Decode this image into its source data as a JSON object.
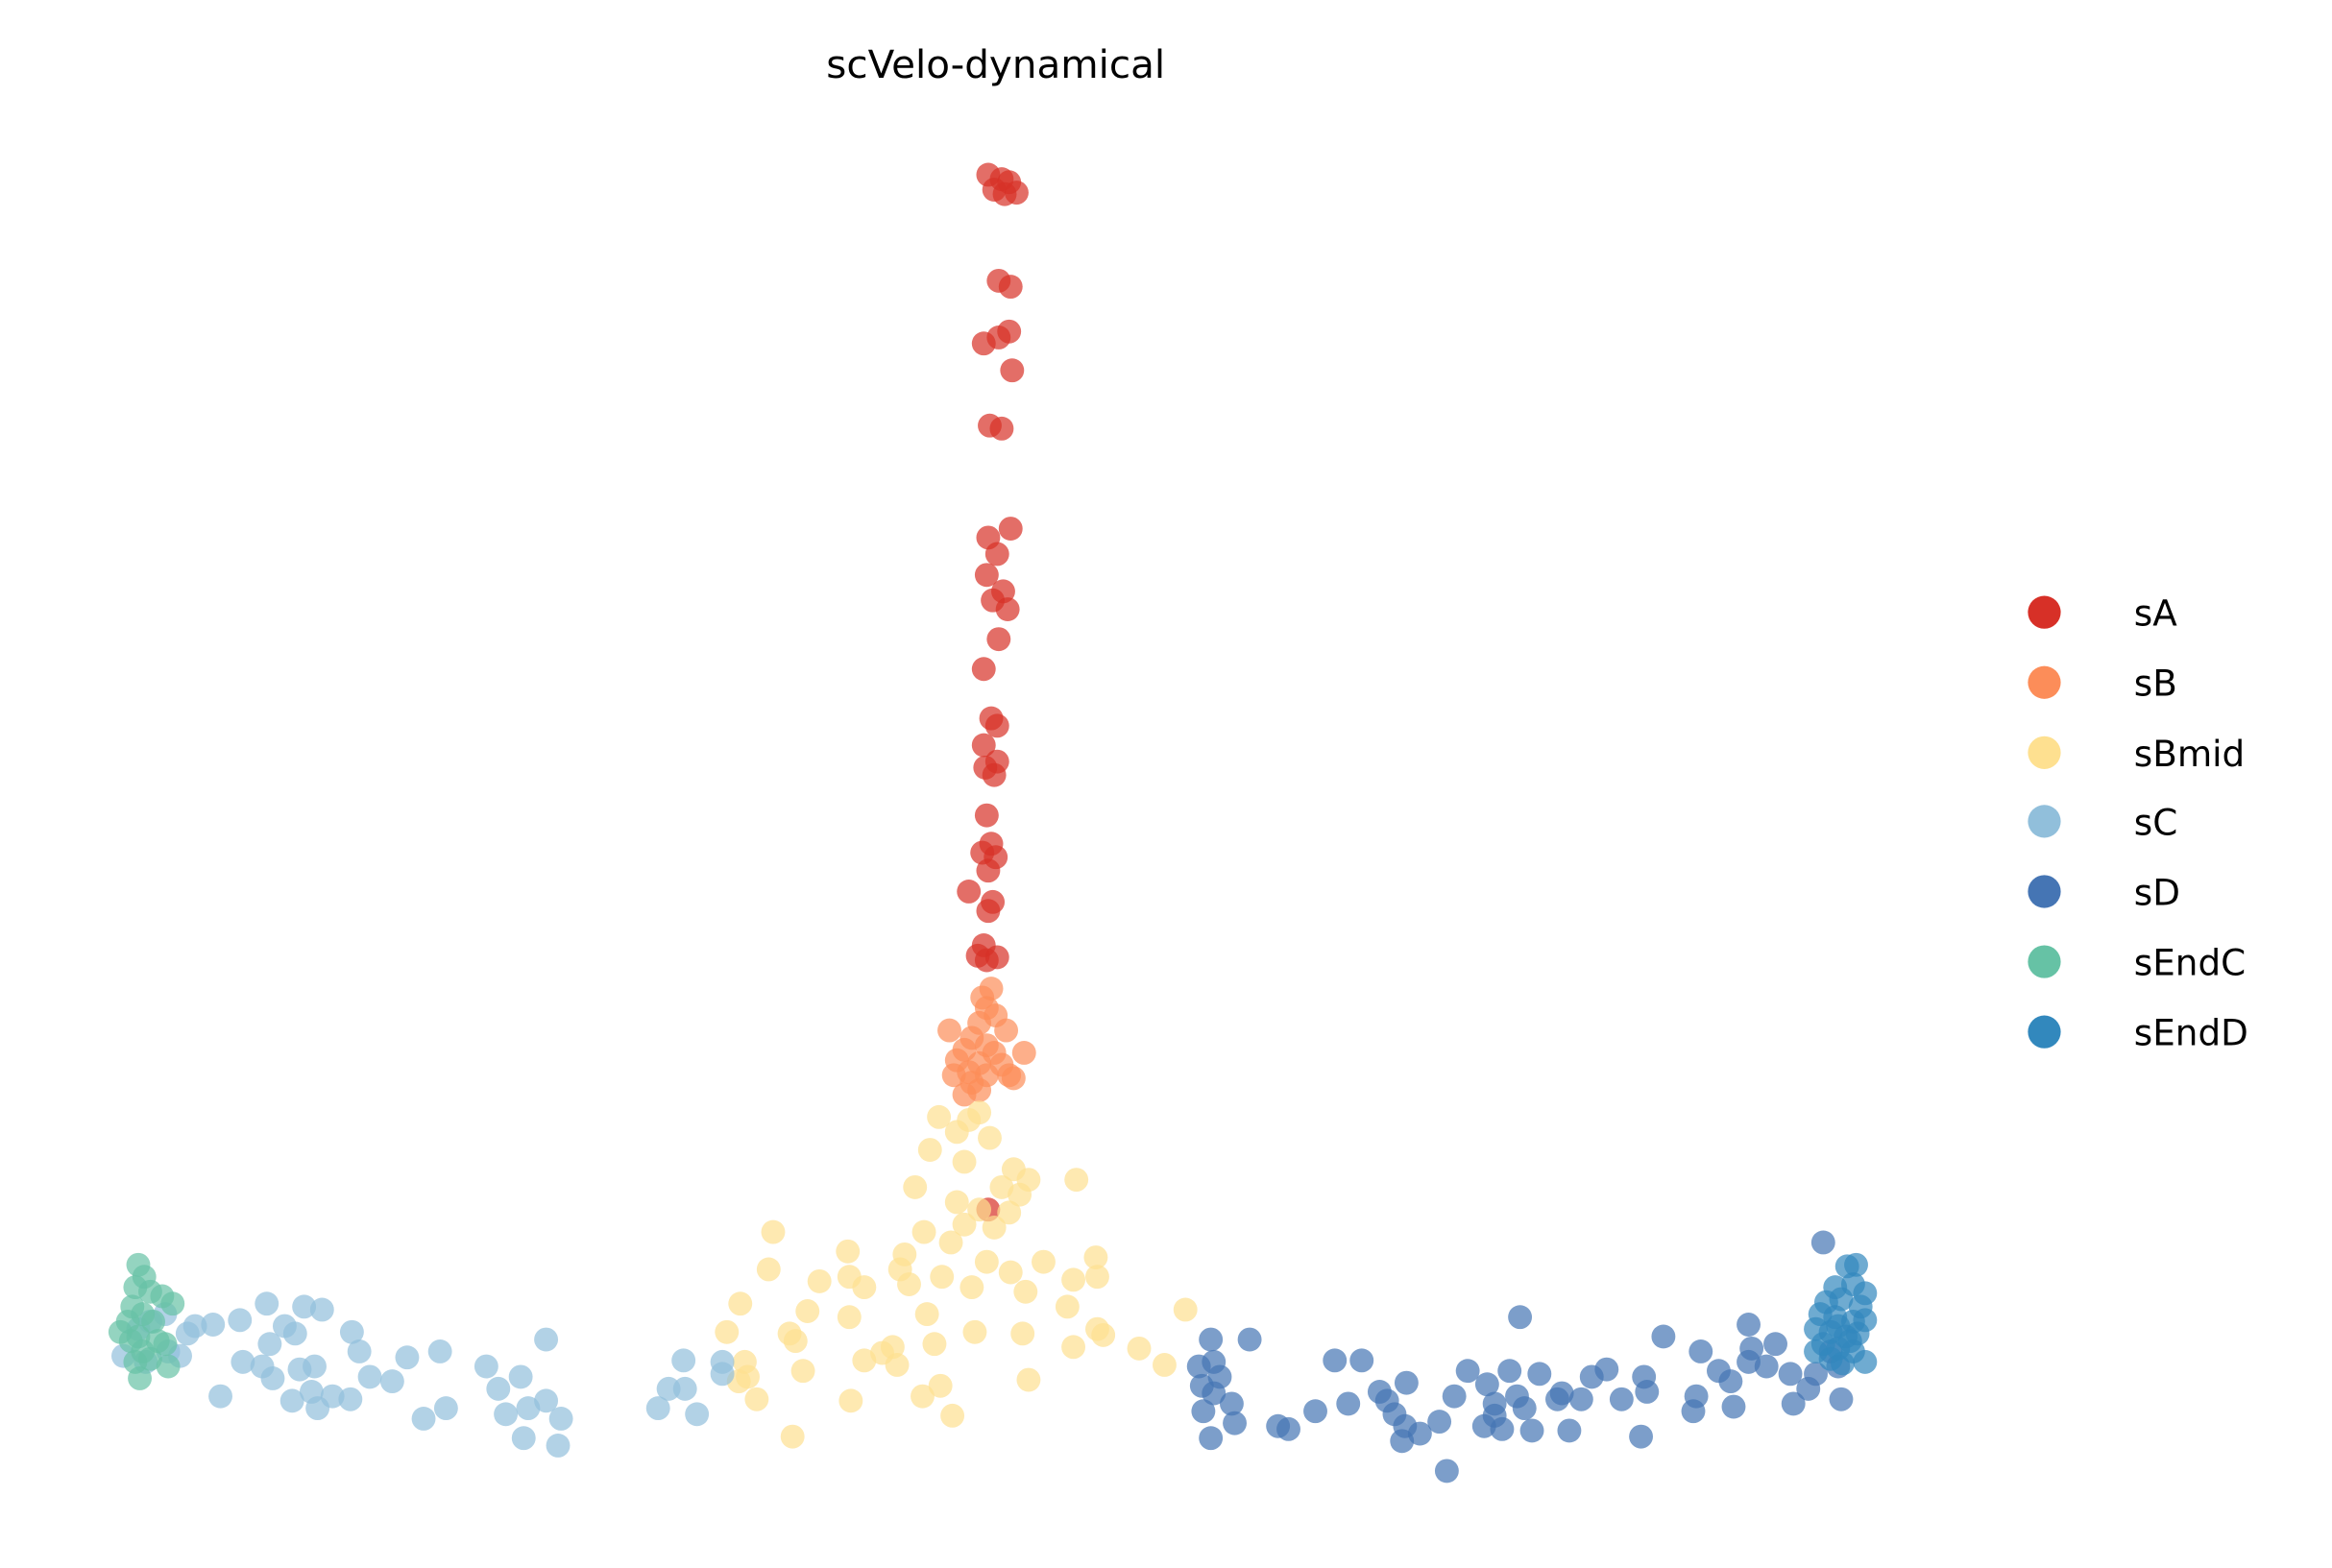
{
  "chart_data": {
    "type": "scatter",
    "title": "scVelo-dynamical",
    "xlabel": "",
    "ylabel": "",
    "xlim": [
      -66,
      90
    ],
    "ylim": [
      -9,
      96
    ],
    "grid": false,
    "axes_visible": false,
    "legend_placement": "right",
    "series": [
      {
        "name": "sA",
        "color": "#d73027",
        "points": [
          [
            0.1,
            84.3
          ],
          [
            1.0,
            84.0
          ],
          [
            1.5,
            83.8
          ],
          [
            0.5,
            83.3
          ],
          [
            1.2,
            83.0
          ],
          [
            2.0,
            83.1
          ],
          [
            0.8,
            77.2
          ],
          [
            1.6,
            76.8
          ],
          [
            0.8,
            73.4
          ],
          [
            1.5,
            73.8
          ],
          [
            -0.2,
            73.0
          ],
          [
            1.7,
            71.2
          ],
          [
            0.2,
            67.5
          ],
          [
            1.0,
            67.3
          ],
          [
            0.1,
            60.0
          ],
          [
            1.6,
            60.6
          ],
          [
            0.7,
            58.9
          ],
          [
            0.0,
            57.5
          ],
          [
            1.1,
            56.4
          ],
          [
            0.4,
            55.8
          ],
          [
            1.4,
            55.2
          ],
          [
            0.8,
            53.2
          ],
          [
            -0.2,
            51.2
          ],
          [
            0.3,
            47.9
          ],
          [
            0.7,
            47.4
          ],
          [
            -0.2,
            46.1
          ],
          [
            0.7,
            45.0
          ],
          [
            -0.1,
            44.6
          ],
          [
            0.5,
            44.1
          ],
          [
            0.0,
            41.4
          ],
          [
            0.3,
            39.5
          ],
          [
            -0.3,
            38.9
          ],
          [
            0.6,
            38.6
          ],
          [
            0.1,
            37.7
          ],
          [
            -1.2,
            36.3
          ],
          [
            0.4,
            35.6
          ],
          [
            0.1,
            35.0
          ],
          [
            -0.2,
            32.7
          ],
          [
            -0.6,
            32.0
          ],
          [
            0.0,
            31.7
          ],
          [
            0.7,
            31.9
          ],
          [
            0.1,
            15.0
          ]
        ]
      },
      {
        "name": "sB",
        "color": "#fc8d59",
        "points": [
          [
            0.3,
            29.8
          ],
          [
            -0.3,
            29.2
          ],
          [
            0.0,
            28.5
          ],
          [
            0.6,
            28.0
          ],
          [
            -0.5,
            27.5
          ],
          [
            -2.5,
            27.0
          ],
          [
            1.3,
            27.0
          ],
          [
            -1.0,
            26.5
          ],
          [
            0.0,
            26.0
          ],
          [
            -1.5,
            25.7
          ],
          [
            0.5,
            25.5
          ],
          [
            2.5,
            25.5
          ],
          [
            -2.0,
            25.0
          ],
          [
            -0.5,
            24.8
          ],
          [
            1.0,
            24.7
          ],
          [
            -1.2,
            24.2
          ],
          [
            -2.2,
            24.0
          ],
          [
            0.0,
            24.0
          ],
          [
            1.5,
            24.0
          ],
          [
            -1.0,
            23.5
          ],
          [
            -0.5,
            23.0
          ],
          [
            -1.5,
            22.7
          ],
          [
            1.8,
            23.8
          ]
        ]
      },
      {
        "name": "sBmid",
        "color": "#fee090",
        "points": [
          [
            -3.2,
            21.2
          ],
          [
            -1.2,
            21.0
          ],
          [
            -0.5,
            21.5
          ],
          [
            -2.0,
            20.2
          ],
          [
            0.2,
            19.8
          ],
          [
            -3.8,
            19.0
          ],
          [
            -1.5,
            18.2
          ],
          [
            1.8,
            17.7
          ],
          [
            2.8,
            17.0
          ],
          [
            6.0,
            17.0
          ],
          [
            1.0,
            16.5
          ],
          [
            -4.8,
            16.5
          ],
          [
            2.2,
            16.0
          ],
          [
            -2.0,
            15.5
          ],
          [
            -0.5,
            15.0
          ],
          [
            1.5,
            14.8
          ],
          [
            0.5,
            13.8
          ],
          [
            -1.5,
            14.0
          ],
          [
            -4.2,
            13.5
          ],
          [
            -2.4,
            12.8
          ],
          [
            -5.5,
            12.0
          ],
          [
            -9.3,
            12.2
          ],
          [
            -14.3,
            13.5
          ],
          [
            3.8,
            11.5
          ],
          [
            7.3,
            11.8
          ],
          [
            -5.8,
            11.0
          ],
          [
            -3.0,
            10.5
          ],
          [
            0.0,
            11.5
          ],
          [
            -14.6,
            11.0
          ],
          [
            -11.2,
            10.2
          ],
          [
            -9.2,
            10.5
          ],
          [
            -8.2,
            9.8
          ],
          [
            1.6,
            10.8
          ],
          [
            5.8,
            10.3
          ],
          [
            7.4,
            10.5
          ],
          [
            -16.5,
            8.7
          ],
          [
            -12.0,
            8.2
          ],
          [
            -9.2,
            7.8
          ],
          [
            -4.0,
            8.0
          ],
          [
            -1.0,
            9.8
          ],
          [
            2.6,
            9.5
          ],
          [
            5.4,
            8.5
          ],
          [
            13.3,
            8.3
          ],
          [
            -17.4,
            6.8
          ],
          [
            -13.2,
            6.7
          ],
          [
            -12.8,
            6.2
          ],
          [
            -6.3,
            5.8
          ],
          [
            -3.5,
            6.0
          ],
          [
            -0.8,
            6.8
          ],
          [
            2.4,
            6.7
          ],
          [
            7.4,
            7.0
          ],
          [
            7.8,
            6.6
          ],
          [
            5.8,
            5.8
          ],
          [
            10.2,
            5.7
          ],
          [
            11.9,
            4.6
          ],
          [
            -8.2,
            4.9
          ],
          [
            -7.0,
            5.4
          ],
          [
            -6.0,
            4.6
          ],
          [
            -12.3,
            4.2
          ],
          [
            -16.2,
            4.8
          ],
          [
            -16.0,
            3.8
          ],
          [
            2.8,
            3.6
          ],
          [
            -3.1,
            3.2
          ],
          [
            -4.3,
            2.5
          ],
          [
            -15.4,
            2.3
          ],
          [
            -9.1,
            2.2
          ],
          [
            -2.3,
            1.2
          ],
          [
            -13.0,
            -0.2
          ],
          [
            -16.6,
            3.5
          ],
          [
            -5.2,
            10.0
          ]
        ]
      },
      {
        "name": "sC",
        "color": "#91bfdb",
        "points": [
          [
            -56.8,
            7.0
          ],
          [
            -56.0,
            7.5
          ],
          [
            -55.0,
            8.0
          ],
          [
            -53.5,
            6.7
          ],
          [
            -53.0,
            7.2
          ],
          [
            -51.8,
            7.3
          ],
          [
            -50.0,
            7.6
          ],
          [
            -48.2,
            8.7
          ],
          [
            -47.0,
            7.2
          ],
          [
            -45.7,
            8.5
          ],
          [
            -44.5,
            8.3
          ],
          [
            -42.5,
            6.8
          ],
          [
            -46.3,
            6.7
          ],
          [
            -48.0,
            6.0
          ],
          [
            -49.8,
            4.8
          ],
          [
            -48.5,
            4.5
          ],
          [
            -46.0,
            4.3
          ],
          [
            -45.0,
            4.5
          ],
          [
            -42.0,
            5.5
          ],
          [
            -38.8,
            5.1
          ],
          [
            -36.6,
            5.5
          ],
          [
            -33.5,
            4.5
          ],
          [
            -31.2,
            3.8
          ],
          [
            -29.5,
            6.3
          ],
          [
            -47.8,
            3.7
          ],
          [
            -41.3,
            3.8
          ],
          [
            -39.8,
            3.5
          ],
          [
            -45.2,
            2.8
          ],
          [
            -43.8,
            2.5
          ],
          [
            -42.6,
            2.3
          ],
          [
            -46.5,
            2.2
          ],
          [
            -51.3,
            2.5
          ],
          [
            -44.8,
            1.7
          ],
          [
            -36.2,
            1.7
          ],
          [
            -37.7,
            1.0
          ],
          [
            -32.7,
            3.0
          ],
          [
            -32.2,
            1.3
          ],
          [
            -30.7,
            1.7
          ],
          [
            -29.5,
            2.2
          ],
          [
            -28.5,
            1.0
          ],
          [
            -31.0,
            -0.3
          ],
          [
            -28.7,
            -0.8
          ],
          [
            -20.3,
            4.9
          ],
          [
            -21.3,
            3.0
          ],
          [
            -22.0,
            1.7
          ],
          [
            -20.2,
            3.0
          ],
          [
            -19.4,
            1.3
          ],
          [
            -17.7,
            4.8
          ],
          [
            -17.7,
            4.0
          ],
          [
            -54.8,
            5.5
          ],
          [
            -54.0,
            5.2
          ],
          [
            -57.8,
            5.2
          ],
          [
            -56.3,
            4.8
          ]
        ]
      },
      {
        "name": "sD",
        "color": "#4575b4",
        "points": [
          [
            17.6,
            6.3
          ],
          [
            15.0,
            6.3
          ],
          [
            15.2,
            4.8
          ],
          [
            14.2,
            4.5
          ],
          [
            15.6,
            3.8
          ],
          [
            14.4,
            3.2
          ],
          [
            15.2,
            2.7
          ],
          [
            16.4,
            2.0
          ],
          [
            14.5,
            1.5
          ],
          [
            16.6,
            0.7
          ],
          [
            15.0,
            -0.3
          ],
          [
            19.5,
            0.5
          ],
          [
            20.2,
            0.3
          ],
          [
            22.0,
            1.5
          ],
          [
            23.3,
            4.9
          ],
          [
            25.1,
            4.9
          ],
          [
            24.2,
            2.0
          ],
          [
            26.3,
            2.8
          ],
          [
            28.1,
            3.4
          ],
          [
            26.8,
            2.2
          ],
          [
            27.3,
            1.3
          ],
          [
            28.0,
            0.5
          ],
          [
            27.8,
            -0.5
          ],
          [
            29.0,
            0.0
          ],
          [
            30.3,
            0.8
          ],
          [
            30.8,
            -2.5
          ],
          [
            31.3,
            2.5
          ],
          [
            32.2,
            4.2
          ],
          [
            33.5,
            3.3
          ],
          [
            34.0,
            2.0
          ],
          [
            35.0,
            4.2
          ],
          [
            34.0,
            1.2
          ],
          [
            33.3,
            0.5
          ],
          [
            34.5,
            0.3
          ],
          [
            35.5,
            2.5
          ],
          [
            36.0,
            1.7
          ],
          [
            37.0,
            4.0
          ],
          [
            36.5,
            0.2
          ],
          [
            35.7,
            7.8
          ],
          [
            39.0,
            0.2
          ],
          [
            38.2,
            2.3
          ],
          [
            38.5,
            2.7
          ],
          [
            39.8,
            2.3
          ],
          [
            40.5,
            3.8
          ],
          [
            41.5,
            4.3
          ],
          [
            42.5,
            2.3
          ],
          [
            44.0,
            3.8
          ],
          [
            44.2,
            2.8
          ],
          [
            43.8,
            -0.2
          ],
          [
            45.3,
            6.5
          ],
          [
            47.3,
            1.5
          ],
          [
            47.5,
            2.5
          ],
          [
            47.8,
            5.5
          ],
          [
            49.0,
            4.2
          ],
          [
            50.0,
            1.8
          ],
          [
            49.8,
            3.5
          ],
          [
            51.0,
            4.8
          ],
          [
            51.2,
            5.7
          ],
          [
            51.0,
            7.3
          ],
          [
            52.8,
            6.0
          ],
          [
            52.2,
            4.5
          ],
          [
            54.0,
            2.0
          ],
          [
            53.8,
            4.0
          ],
          [
            55.0,
            3.0
          ],
          [
            55.5,
            4.0
          ],
          [
            56.0,
            12.8
          ],
          [
            57.0,
            4.5
          ],
          [
            57.2,
            2.3
          ],
          [
            56.5,
            5.5
          ]
        ]
      },
      {
        "name": "sEndC",
        "color": "#66c2a5",
        "points": [
          [
            -56.8,
            11.3
          ],
          [
            -56.4,
            10.5
          ],
          [
            -57.0,
            9.8
          ],
          [
            -56.0,
            9.5
          ],
          [
            -55.2,
            9.2
          ],
          [
            -54.5,
            8.7
          ],
          [
            -57.2,
            8.5
          ],
          [
            -56.5,
            8.0
          ],
          [
            -57.5,
            7.5
          ],
          [
            -55.8,
            7.5
          ],
          [
            -58.0,
            6.8
          ],
          [
            -56.8,
            6.5
          ],
          [
            -55.5,
            6.2
          ],
          [
            -55.0,
            6.0
          ],
          [
            -56.5,
            5.5
          ],
          [
            -54.8,
            4.5
          ],
          [
            -57.0,
            4.8
          ],
          [
            -56.0,
            5.0
          ],
          [
            -56.7,
            3.7
          ],
          [
            -57.3,
            6.2
          ]
        ]
      },
      {
        "name": "sEndD",
        "color": "#3288bd",
        "points": [
          [
            57.6,
            11.2
          ],
          [
            58.2,
            11.3
          ],
          [
            56.8,
            9.8
          ],
          [
            58.0,
            10.0
          ],
          [
            58.8,
            9.4
          ],
          [
            56.2,
            8.8
          ],
          [
            57.2,
            9.0
          ],
          [
            58.5,
            8.5
          ],
          [
            55.8,
            8.0
          ],
          [
            56.8,
            7.8
          ],
          [
            58.0,
            7.5
          ],
          [
            58.8,
            7.6
          ],
          [
            55.5,
            7.0
          ],
          [
            56.5,
            6.8
          ],
          [
            57.5,
            6.5
          ],
          [
            58.3,
            6.7
          ],
          [
            56.0,
            6.0
          ],
          [
            57.0,
            5.7
          ],
          [
            58.0,
            5.5
          ],
          [
            58.8,
            4.8
          ],
          [
            56.5,
            5.0
          ],
          [
            57.3,
            4.7
          ],
          [
            55.5,
            5.5
          ],
          [
            57.8,
            6.2
          ],
          [
            57.0,
            7.2
          ]
        ]
      }
    ]
  }
}
